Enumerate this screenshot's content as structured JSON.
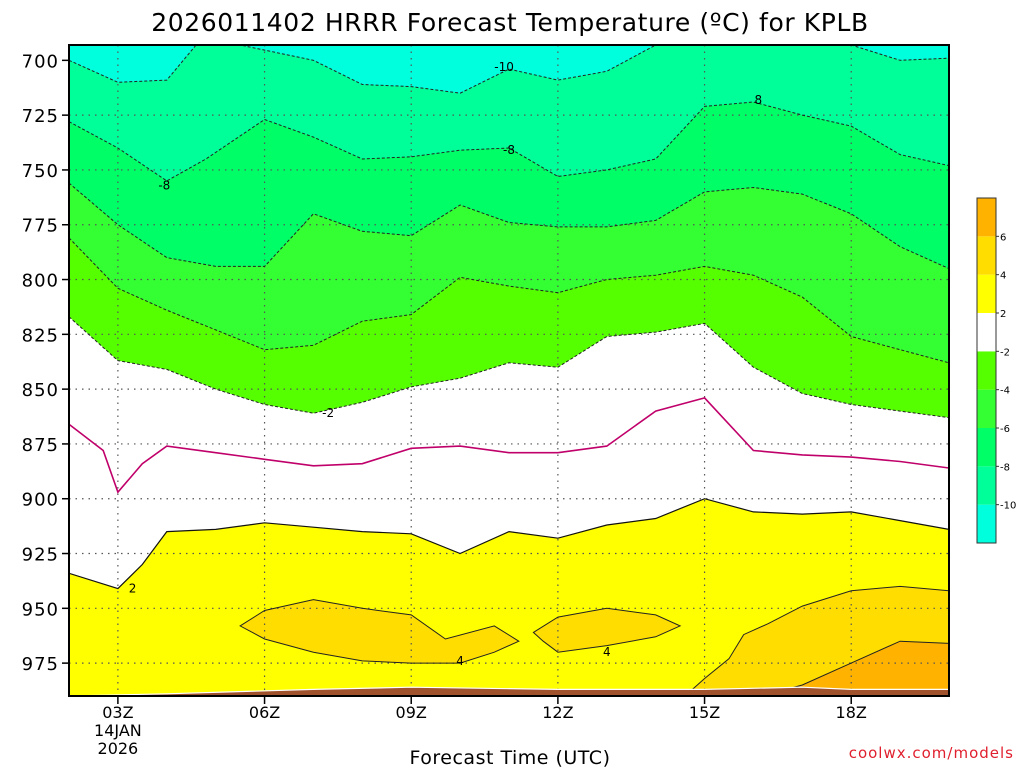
{
  "chart_data": {
    "type": "heatmap",
    "title": "2026011402 HRRR Forecast Temperature (ºC) for KPLB",
    "xlabel": "Forecast Time (UTC)",
    "ylabel": "",
    "x_ticks": [
      {
        "hour": 3,
        "label": "03Z",
        "sub1": "14JAN",
        "sub2": "2026"
      },
      {
        "hour": 6,
        "label": "06Z"
      },
      {
        "hour": 9,
        "label": "09Z"
      },
      {
        "hour": 12,
        "label": "12Z"
      },
      {
        "hour": 15,
        "label": "15Z"
      },
      {
        "hour": 18,
        "label": "18Z"
      }
    ],
    "x_range": [
      2,
      20
    ],
    "y_ticks": [
      700,
      725,
      750,
      775,
      800,
      825,
      850,
      875,
      900,
      925,
      950,
      975
    ],
    "y_range": [
      693,
      990
    ],
    "colorbar": {
      "bands": [
        {
          "lo": -12,
          "hi": -10,
          "color": "#00ffdd"
        },
        {
          "lo": -10,
          "hi": -8,
          "color": "#00ff99"
        },
        {
          "lo": -8,
          "hi": -6,
          "color": "#00ff66"
        },
        {
          "lo": -6,
          "hi": -4,
          "color": "#33ff33"
        },
        {
          "lo": -4,
          "hi": -2,
          "color": "#55ff00"
        },
        {
          "lo": -2,
          "hi": 2,
          "color": "#ffffff"
        },
        {
          "lo": 2,
          "hi": 4,
          "color": "#ffff00"
        },
        {
          "lo": 4,
          "hi": 6,
          "color": "#ffdd00"
        },
        {
          "lo": 6,
          "hi": 8,
          "color": "#ffb300"
        }
      ],
      "labels": [
        {
          "v": -10,
          "text": "-10"
        },
        {
          "v": -8,
          "text": "-8"
        },
        {
          "v": -6,
          "text": "-6"
        },
        {
          "v": -4,
          "text": "-4"
        },
        {
          "v": -2,
          "text": "-2"
        },
        {
          "v": 2,
          "text": "2"
        },
        {
          "v": 4,
          "text": "4"
        },
        {
          "v": 6,
          "text": "6"
        }
      ]
    },
    "isotherms": [
      {
        "level": -10,
        "points": [
          [
            2.0,
            700
          ],
          [
            3.0,
            710
          ],
          [
            4.0,
            709
          ],
          [
            4.6,
            693
          ],
          [
            5.5,
            693
          ],
          [
            7.0,
            700
          ],
          [
            8.0,
            711
          ],
          [
            9.0,
            712
          ],
          [
            10.0,
            715
          ],
          [
            11.0,
            704
          ],
          [
            12.0,
            709
          ],
          [
            13.0,
            705
          ],
          [
            14.0,
            693
          ],
          [
            18.0,
            693
          ],
          [
            19.0,
            700
          ],
          [
            20.0,
            699
          ]
        ]
      },
      {
        "level": -8,
        "points": [
          [
            2.0,
            728
          ],
          [
            3.0,
            740
          ],
          [
            4.0,
            755
          ],
          [
            4.8,
            745
          ],
          [
            6.0,
            727
          ],
          [
            7.0,
            735
          ],
          [
            8.0,
            745
          ],
          [
            9.0,
            744
          ],
          [
            10.0,
            741
          ],
          [
            11.0,
            740
          ],
          [
            12.0,
            753
          ],
          [
            13.0,
            750
          ],
          [
            14.0,
            745
          ],
          [
            15.0,
            721
          ],
          [
            16.0,
            719
          ],
          [
            17.0,
            725
          ],
          [
            18.0,
            730
          ],
          [
            19.0,
            743
          ],
          [
            20.0,
            748
          ]
        ]
      },
      {
        "level": -6,
        "points": [
          [
            2.0,
            756
          ],
          [
            3.0,
            775
          ],
          [
            4.0,
            790
          ],
          [
            5.0,
            794
          ],
          [
            6.0,
            794
          ],
          [
            7.0,
            770
          ],
          [
            8.0,
            778
          ],
          [
            9.0,
            780
          ],
          [
            10.0,
            766
          ],
          [
            11.0,
            774
          ],
          [
            12.0,
            776
          ],
          [
            13.0,
            776
          ],
          [
            14.0,
            773
          ],
          [
            15.0,
            760
          ],
          [
            16.0,
            758
          ],
          [
            17.0,
            761
          ],
          [
            18.0,
            770
          ],
          [
            19.0,
            785
          ],
          [
            20.0,
            795
          ]
        ]
      },
      {
        "level": -4,
        "points": [
          [
            2.0,
            781
          ],
          [
            3.0,
            804
          ],
          [
            4.0,
            814
          ],
          [
            5.0,
            823
          ],
          [
            6.0,
            832
          ],
          [
            7.0,
            830
          ],
          [
            8.0,
            819
          ],
          [
            9.0,
            816
          ],
          [
            10.0,
            799
          ],
          [
            11.0,
            803
          ],
          [
            12.0,
            806
          ],
          [
            13.0,
            800
          ],
          [
            14.0,
            798
          ],
          [
            15.0,
            794
          ],
          [
            16.0,
            798
          ],
          [
            17.0,
            808
          ],
          [
            18.0,
            826
          ],
          [
            19.0,
            832
          ],
          [
            20.0,
            838
          ]
        ]
      },
      {
        "level": -2,
        "label_at": 7.0,
        "points": [
          [
            2.0,
            817
          ],
          [
            3.0,
            837
          ],
          [
            4.0,
            841
          ],
          [
            5.0,
            850
          ],
          [
            6.0,
            857
          ],
          [
            7.0,
            861
          ],
          [
            8.0,
            856
          ],
          [
            9.0,
            849
          ],
          [
            10.0,
            845
          ],
          [
            11.0,
            838
          ],
          [
            12.0,
            840
          ],
          [
            13.0,
            826
          ],
          [
            14.0,
            824
          ],
          [
            15.0,
            820
          ],
          [
            16.0,
            840
          ],
          [
            17.0,
            852
          ],
          [
            18.0,
            857
          ],
          [
            19.0,
            860
          ],
          [
            20.0,
            863
          ]
        ]
      },
      {
        "level": 0,
        "points": [
          [
            2.0,
            866
          ],
          [
            2.7,
            878
          ],
          [
            3.0,
            897
          ],
          [
            3.5,
            884
          ],
          [
            4.0,
            876
          ],
          [
            5.0,
            879
          ],
          [
            6.0,
            882
          ],
          [
            7.0,
            885
          ],
          [
            8.0,
            884
          ],
          [
            9.0,
            877
          ],
          [
            10.0,
            876
          ],
          [
            11.0,
            879
          ],
          [
            12.0,
            879
          ],
          [
            13.0,
            876
          ],
          [
            14.0,
            860
          ],
          [
            15.0,
            854
          ],
          [
            16.0,
            878
          ],
          [
            17.0,
            880
          ],
          [
            18.0,
            881
          ],
          [
            19.0,
            883
          ],
          [
            20.0,
            886
          ]
        ]
      },
      {
        "level": 2,
        "label_at": 3.0,
        "points": [
          [
            2.0,
            934
          ],
          [
            3.0,
            941
          ],
          [
            3.5,
            930
          ],
          [
            4.0,
            915
          ],
          [
            5.0,
            914
          ],
          [
            6.0,
            911
          ],
          [
            7.0,
            913
          ],
          [
            8.0,
            915
          ],
          [
            9.0,
            916
          ],
          [
            10.0,
            925
          ],
          [
            11.0,
            915
          ],
          [
            12.0,
            918
          ],
          [
            13.0,
            912
          ],
          [
            14.0,
            909
          ],
          [
            15.0,
            900
          ],
          [
            16.0,
            906
          ],
          [
            17.0,
            907
          ],
          [
            18.0,
            906
          ],
          [
            19.0,
            910
          ],
          [
            20.0,
            914
          ]
        ]
      }
    ],
    "warm_pockets": [
      {
        "level": 4,
        "label": "4",
        "label_at": [
          10.0,
          974
        ],
        "points": [
          [
            5.5,
            958
          ],
          [
            6.0,
            951
          ],
          [
            7.0,
            946
          ],
          [
            8.0,
            950
          ],
          [
            9.0,
            953
          ],
          [
            9.7,
            964
          ],
          [
            10.7,
            958
          ],
          [
            11.2,
            965
          ],
          [
            10.7,
            970
          ],
          [
            10.0,
            975
          ],
          [
            9.0,
            975
          ],
          [
            8.0,
            974
          ],
          [
            7.0,
            970
          ],
          [
            6.0,
            964
          ]
        ]
      },
      {
        "level": 4,
        "label": "4",
        "label_at": [
          13.0,
          970
        ],
        "points": [
          [
            11.5,
            961
          ],
          [
            12.0,
            954
          ],
          [
            13.0,
            950
          ],
          [
            14.0,
            953
          ],
          [
            14.5,
            958
          ],
          [
            14.0,
            963
          ],
          [
            13.0,
            967
          ],
          [
            12.0,
            970
          ],
          [
            11.7,
            965
          ]
        ]
      },
      {
        "level": 4,
        "points": [
          [
            14.7,
            988
          ],
          [
            15.0,
            982
          ],
          [
            15.5,
            973
          ],
          [
            15.8,
            962
          ],
          [
            16.3,
            957
          ],
          [
            17.0,
            949
          ],
          [
            18.0,
            942
          ],
          [
            19.0,
            940
          ],
          [
            20.0,
            942
          ],
          [
            20.0,
            988
          ]
        ]
      },
      {
        "level": 6,
        "points": [
          [
            16.5,
            988
          ],
          [
            17.0,
            985
          ],
          [
            18.0,
            975
          ],
          [
            19.0,
            965
          ],
          [
            20.0,
            966
          ],
          [
            20.0,
            988
          ]
        ]
      }
    ],
    "terrain_pressure": [
      [
        2.0,
        990
      ],
      [
        4.0,
        989
      ],
      [
        7.0,
        987
      ],
      [
        9.0,
        986
      ],
      [
        12.0,
        987
      ],
      [
        15.0,
        987
      ],
      [
        17.0,
        986
      ],
      [
        18.0,
        987
      ],
      [
        20.0,
        987
      ]
    ],
    "inline_labels": [
      {
        "text": "-10",
        "at": [
          10.9,
          703
        ]
      },
      {
        "text": "-8",
        "at": [
          11.0,
          741
        ]
      },
      {
        "text": "-8",
        "at": [
          3.95,
          757
        ]
      },
      {
        "text": "8",
        "at": [
          16.1,
          718
        ]
      }
    ]
  },
  "footer": {
    "credit": "coolwx.com/models",
    "credit_color": "#e0202e"
  }
}
